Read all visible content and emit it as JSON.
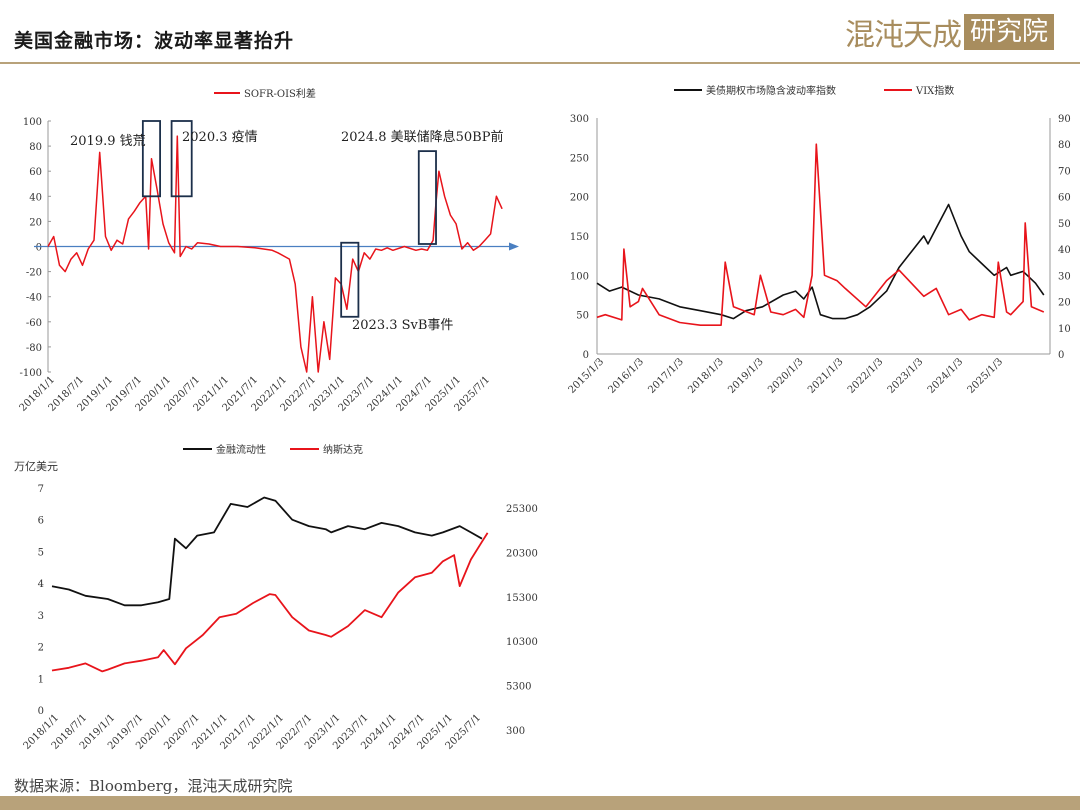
{
  "header": {
    "title": "美国金融市场：波动率显著抬升",
    "logo_text_a": "混沌天成",
    "logo_text_b": "研究院"
  },
  "footer": {
    "source": "数据来源：Bloomberg，混沌天成研究院"
  },
  "colors": {
    "red": "#e8141b",
    "black": "#111111",
    "arrow": "#4a7fc1",
    "box": "#1c2f4a",
    "brand": "#a88d5e"
  },
  "chart_data": [
    {
      "type": "line",
      "id": "sofr",
      "legend": [
        "SOFR-OIS利差"
      ],
      "ylim": [
        -100,
        100
      ],
      "yticks": [
        "100",
        "80",
        "60",
        "40",
        "20",
        "0",
        "-20",
        "-40",
        "-60",
        "-80",
        "-100"
      ],
      "xticks": [
        "2018/1/1",
        "2018/7/1",
        "2019/1/1",
        "2019/7/1",
        "2020/1/1",
        "2020/7/1",
        "2021/1/1",
        "2021/7/1",
        "2022/1/1",
        "2022/7/1",
        "2023/1/1",
        "2023/7/1",
        "2024/1/1",
        "2024/7/1",
        "2025/1/1",
        "2025/7/1"
      ],
      "annotations": [
        "2019.9 钱荒",
        "2020.3 疫情",
        "2024.8 美联储降息50BP前",
        "2023.3 SvB事件"
      ],
      "series": [
        {
          "name": "SOFR-OIS利差",
          "x": [
            2018.0,
            2018.1,
            2018.2,
            2018.3,
            2018.4,
            2018.5,
            2018.6,
            2018.7,
            2018.8,
            2018.9,
            2019.0,
            2019.1,
            2019.2,
            2019.3,
            2019.4,
            2019.5,
            2019.6,
            2019.7,
            2019.75,
            2019.8,
            2019.9,
            2020.0,
            2020.1,
            2020.2,
            2020.25,
            2020.3,
            2020.4,
            2020.5,
            2020.6,
            2020.8,
            2021.0,
            2021.3,
            2021.6,
            2021.9,
            2022.0,
            2022.2,
            2022.3,
            2022.4,
            2022.5,
            2022.6,
            2022.7,
            2022.8,
            2022.9,
            2023.0,
            2023.1,
            2023.2,
            2023.3,
            2023.4,
            2023.5,
            2023.6,
            2023.7,
            2023.8,
            2023.9,
            2024.0,
            2024.2,
            2024.4,
            2024.5,
            2024.6,
            2024.7,
            2024.75,
            2024.8,
            2024.9,
            2025.0,
            2025.1,
            2025.2,
            2025.3,
            2025.4,
            2025.5,
            2025.6,
            2025.7,
            2025.8,
            2025.9
          ],
          "y": [
            0,
            8,
            -15,
            -20,
            -10,
            -5,
            -15,
            -2,
            5,
            75,
            8,
            -3,
            5,
            2,
            22,
            28,
            35,
            40,
            -2,
            70,
            45,
            18,
            3,
            -5,
            88,
            -8,
            0,
            -2,
            3,
            2,
            0,
            0,
            -1,
            -3,
            -5,
            -10,
            -30,
            -80,
            -100,
            -40,
            -100,
            -60,
            -90,
            -25,
            -30,
            -50,
            -10,
            -20,
            -5,
            -10,
            -2,
            -3,
            -1,
            -3,
            0,
            -3,
            -2,
            -3,
            5,
            35,
            60,
            40,
            25,
            18,
            -2,
            3,
            -3,
            0,
            5,
            10,
            40,
            30
          ]
        }
      ]
    },
    {
      "type": "line",
      "id": "vol",
      "legend": [
        "美债期权市场隐含波动率指数",
        "VIX指数"
      ],
      "ylim_left": [
        0,
        300
      ],
      "ylim_right": [
        0,
        90
      ],
      "yticks_left": [
        "300",
        "250",
        "200",
        "150",
        "100",
        "50",
        "0"
      ],
      "yticks_right": [
        "90",
        "80",
        "70",
        "60",
        "50",
        "40",
        "30",
        "20",
        "10",
        "0"
      ],
      "xticks": [
        "2015/1/3",
        "2016/1/3",
        "2017/1/3",
        "2018/1/3",
        "2019/1/3",
        "2020/1/3",
        "2021/1/3",
        "2022/1/3",
        "2023/1/3",
        "2024/1/3",
        "2025/1/3"
      ],
      "series": [
        {
          "name": "美债期权市场隐含波动率指数",
          "axis": "left",
          "x": [
            2015.0,
            2015.3,
            2015.6,
            2016.0,
            2016.5,
            2017.0,
            2017.5,
            2018.0,
            2018.3,
            2018.6,
            2019.0,
            2019.5,
            2019.8,
            2020.0,
            2020.2,
            2020.4,
            2020.7,
            2021.0,
            2021.3,
            2021.6,
            2022.0,
            2022.3,
            2022.6,
            2022.9,
            2023.0,
            2023.2,
            2023.5,
            2023.8,
            2024.0,
            2024.3,
            2024.6,
            2024.9,
            2025.0,
            2025.3,
            2025.6,
            2025.8
          ],
          "y": [
            90,
            80,
            85,
            75,
            70,
            60,
            55,
            50,
            45,
            55,
            60,
            75,
            80,
            70,
            85,
            50,
            45,
            45,
            50,
            60,
            80,
            110,
            130,
            150,
            140,
            160,
            190,
            150,
            130,
            115,
            100,
            110,
            100,
            105,
            90,
            75
          ]
        },
        {
          "name": "VIX指数",
          "axis": "right",
          "x": [
            2015.0,
            2015.2,
            2015.6,
            2015.65,
            2015.8,
            2016.0,
            2016.1,
            2016.5,
            2017.0,
            2017.5,
            2018.0,
            2018.1,
            2018.3,
            2018.8,
            2018.95,
            2019.2,
            2019.5,
            2019.8,
            2020.0,
            2020.2,
            2020.3,
            2020.5,
            2020.8,
            2021.0,
            2021.5,
            2022.0,
            2022.3,
            2022.6,
            2022.9,
            2023.2,
            2023.5,
            2023.8,
            2024.0,
            2024.3,
            2024.6,
            2024.7,
            2024.9,
            2025.0,
            2025.3,
            2025.35,
            2025.5,
            2025.8
          ],
          "y": [
            14,
            15,
            13,
            40,
            18,
            20,
            25,
            15,
            12,
            11,
            11,
            35,
            18,
            15,
            30,
            16,
            15,
            17,
            14,
            30,
            80,
            30,
            28,
            25,
            18,
            28,
            32,
            27,
            22,
            25,
            15,
            17,
            13,
            15,
            14,
            35,
            16,
            15,
            20,
            50,
            18,
            16
          ]
        }
      ]
    },
    {
      "type": "line",
      "id": "liq",
      "legend": [
        "金融流动性",
        "纳斯达克"
      ],
      "ylabel_left": "万亿美元",
      "ylim_left": [
        0,
        7
      ],
      "ylim_right": [
        300,
        25300
      ],
      "yticks_left": [
        "7",
        "6",
        "5",
        "4",
        "3",
        "2",
        "1",
        "0"
      ],
      "yticks_right": [
        "25300",
        "20300",
        "15300",
        "10300",
        "5300",
        "300"
      ],
      "xticks": [
        "2018/1/1",
        "2018/7/1",
        "2019/1/1",
        "2019/7/1",
        "2020/1/1",
        "2020/7/1",
        "2021/1/1",
        "2021/7/1",
        "2022/1/1",
        "2022/7/1",
        "2023/1/1",
        "2023/7/1",
        "2024/1/1",
        "2024/7/1",
        "2025/1/1",
        "2025/7/1"
      ],
      "series": [
        {
          "name": "金融流动性",
          "axis": "left",
          "x": [
            2018.0,
            2018.3,
            2018.6,
            2019.0,
            2019.3,
            2019.6,
            2019.9,
            2020.1,
            2020.2,
            2020.4,
            2020.6,
            2020.9,
            2021.2,
            2021.5,
            2021.8,
            2022.0,
            2022.3,
            2022.6,
            2022.9,
            2023.0,
            2023.3,
            2023.6,
            2023.9,
            2024.2,
            2024.5,
            2024.8,
            2025.0,
            2025.3,
            2025.5,
            2025.7
          ],
          "y": [
            3.9,
            3.8,
            3.6,
            3.5,
            3.3,
            3.3,
            3.4,
            3.5,
            5.4,
            5.1,
            5.5,
            5.6,
            6.5,
            6.4,
            6.7,
            6.6,
            6.0,
            5.8,
            5.7,
            5.6,
            5.8,
            5.7,
            5.9,
            5.8,
            5.6,
            5.5,
            5.6,
            5.8,
            5.6,
            5.4
          ]
        },
        {
          "name": "纳斯达克",
          "axis": "right",
          "x": [
            2018.0,
            2018.3,
            2018.6,
            2018.9,
            2019.0,
            2019.3,
            2019.6,
            2019.9,
            2020.0,
            2020.2,
            2020.4,
            2020.7,
            2021.0,
            2021.3,
            2021.6,
            2021.9,
            2022.0,
            2022.3,
            2022.6,
            2022.9,
            2023.0,
            2023.3,
            2023.6,
            2023.9,
            2024.2,
            2024.5,
            2024.8,
            2025.0,
            2025.2,
            2025.3,
            2025.5,
            2025.7,
            2025.8
          ],
          "y": [
            7000,
            7300,
            7800,
            6900,
            7100,
            7800,
            8100,
            8500,
            9300,
            7700,
            9500,
            11000,
            13000,
            13400,
            14600,
            15600,
            15500,
            13000,
            11500,
            11000,
            10800,
            12000,
            13800,
            13000,
            15800,
            17500,
            18000,
            19300,
            20000,
            16500,
            19500,
            21500,
            22500
          ]
        }
      ]
    }
  ]
}
